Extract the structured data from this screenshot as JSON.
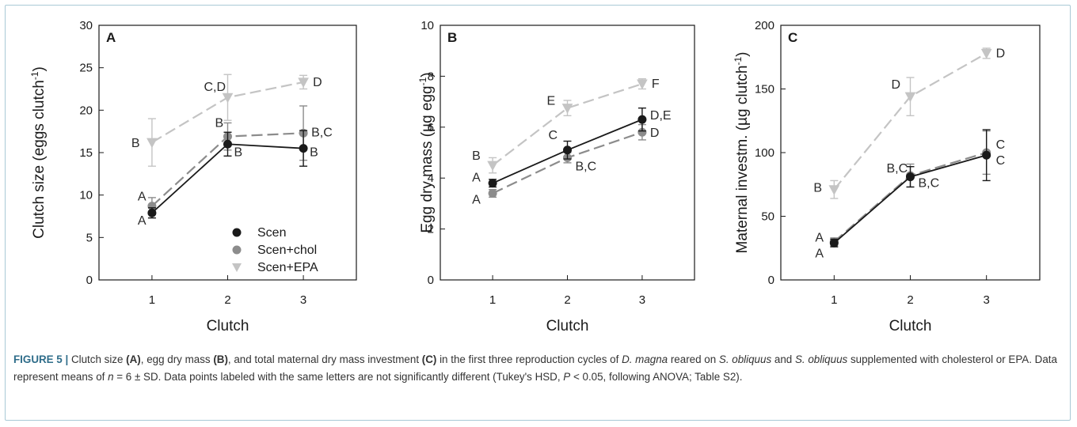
{
  "colors": {
    "Scen": "#1a1a1a",
    "Scen+chol": "#8c8c8c",
    "Scen+EPA": "#c4c4c4",
    "caption_label": "#2f6d8a"
  },
  "legend": {
    "position": "lower-right of panel A",
    "items": [
      "Scen",
      "Scen+chol",
      "Scen+EPA"
    ]
  },
  "chart_data": [
    {
      "panel": "A",
      "type": "line",
      "xlabel": "Clutch",
      "ylabel": "Clutch size (eggs clutch-1)",
      "x": [
        1,
        2,
        3
      ],
      "xlim": [
        0.3,
        3.7
      ],
      "ylim": [
        0,
        30
      ],
      "yticks": [
        0,
        5,
        10,
        15,
        20,
        25,
        30
      ],
      "series": [
        {
          "name": "Scen",
          "marker": "circle",
          "dash": "solid",
          "values": [
            7.9,
            16.0,
            15.5
          ],
          "sd": [
            0.6,
            1.4,
            2.1
          ],
          "letters": [
            "A",
            "B",
            "B"
          ]
        },
        {
          "name": "Scen+chol",
          "marker": "circle",
          "dash": "long",
          "values": [
            8.7,
            16.9,
            17.3
          ],
          "sd": [
            1.0,
            1.6,
            3.2
          ],
          "letters": [
            "A",
            "B",
            "B,C"
          ]
        },
        {
          "name": "Scen+EPA",
          "marker": "triangle",
          "dash": "long",
          "values": [
            16.2,
            21.5,
            23.3
          ],
          "sd": [
            2.8,
            2.7,
            0.8
          ],
          "letters": [
            "B",
            "C,D",
            "D"
          ]
        }
      ]
    },
    {
      "panel": "B",
      "type": "line",
      "xlabel": "Clutch",
      "ylabel": "Egg dry mass (µg egg-1)",
      "x": [
        1,
        2,
        3
      ],
      "xlim": [
        0.3,
        3.7
      ],
      "ylim": [
        0,
        10
      ],
      "yticks": [
        0,
        2,
        4,
        6,
        8,
        10
      ],
      "series": [
        {
          "name": "Scen",
          "marker": "circle",
          "dash": "solid",
          "values": [
            3.8,
            5.1,
            6.3
          ],
          "sd": [
            0.15,
            0.35,
            0.45
          ],
          "letters": [
            "A",
            "C",
            "D,E"
          ]
        },
        {
          "name": "Scen+chol",
          "marker": "circle",
          "dash": "long",
          "values": [
            3.4,
            4.8,
            5.8
          ],
          "sd": [
            0.15,
            0.2,
            0.3
          ],
          "letters": [
            "A",
            "B,C",
            "D"
          ]
        },
        {
          "name": "Scen+EPA",
          "marker": "triangle",
          "dash": "long",
          "values": [
            4.5,
            6.75,
            7.7
          ],
          "sd": [
            0.3,
            0.3,
            0.2
          ],
          "letters": [
            "B",
            "E",
            "F"
          ]
        }
      ]
    },
    {
      "panel": "C",
      "type": "line",
      "xlabel": "Clutch",
      "ylabel": "Maternal investm. (µg clutch-1)",
      "x": [
        1,
        2,
        3
      ],
      "xlim": [
        0.3,
        3.7
      ],
      "ylim": [
        0,
        200
      ],
      "yticks": [
        0,
        50,
        100,
        150,
        200
      ],
      "series": [
        {
          "name": "Scen",
          "marker": "circle",
          "dash": "solid",
          "values": [
            29,
            81,
            98
          ],
          "sd": [
            3,
            8,
            20
          ],
          "letters": [
            "A",
            "B,C",
            "C"
          ]
        },
        {
          "name": "Scen+chol",
          "marker": "circle",
          "dash": "long",
          "values": [
            30,
            82,
            100
          ],
          "sd": [
            3,
            9,
            17
          ],
          "letters": [
            "A",
            "B,C",
            "C"
          ]
        },
        {
          "name": "Scen+EPA",
          "marker": "triangle",
          "dash": "long",
          "values": [
            71,
            144,
            178
          ],
          "sd": [
            7,
            15,
            4
          ],
          "letters": [
            "B",
            "D",
            "D"
          ]
        }
      ]
    }
  ],
  "caption": {
    "label": "FIGURE 5 |",
    "t1": " Clutch size ",
    "b1": "(A)",
    "t2": ", egg dry mass ",
    "b2": "(B)",
    "t3": ", and total maternal dry mass investment ",
    "b3": "(C)",
    "t4": " in the first three reproduction cycles of ",
    "i1": "D. magna",
    "t5": " reared on ",
    "i2": "S. obliquus",
    "t6": " and ",
    "i3": "S. obliquus",
    "t7": " supplemented with cholesterol or EPA. Data represent means of ",
    "i4": "n",
    "t8": " = 6 ± SD. Data points labeled with the same letters are not significantly different (Tukey's HSD, ",
    "i5": "P",
    "t9": " < 0.05, following ANOVA; Table S2)."
  }
}
